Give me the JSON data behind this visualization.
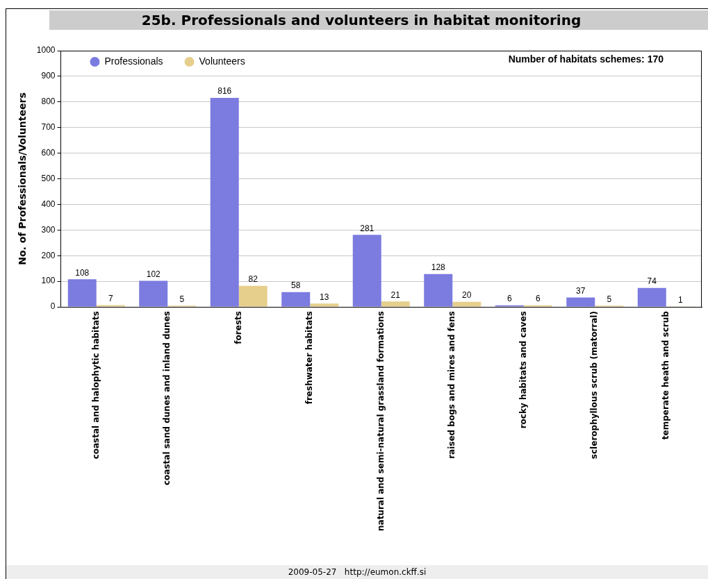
{
  "chart_data": {
    "type": "bar",
    "title": "25b. Professionals and volunteers in habitat monitoring",
    "ylabel": "No. of Professionals/Volunteers",
    "categories": [
      "coastal and halophytic habitats",
      "coastal sand dunes and inland dunes",
      "forests",
      "freshwater habitats",
      "natural and semi-natural grassland formations",
      "raised bogs and mires and fens",
      "rocky habitats and caves",
      "sclerophyllous scrub (matorral)",
      "temperate heath and scrub"
    ],
    "series": [
      {
        "name": "Professionals",
        "color": "#7b7be0",
        "values": [
          108,
          102,
          816,
          58,
          281,
          128,
          6,
          37,
          74
        ]
      },
      {
        "name": "Volunteers",
        "color": "#e6cf8c",
        "values": [
          7,
          5,
          82,
          13,
          21,
          20,
          6,
          5,
          1
        ]
      }
    ],
    "ylim": [
      0,
      1000
    ],
    "yticks": [
      0,
      100,
      200,
      300,
      400,
      500,
      600,
      700,
      800,
      900,
      1000
    ],
    "grid": "y",
    "legend": "top left",
    "data_labels": true,
    "annotations": [
      "Number of habitats schemes: 170",
      "2009-05-27   http://eumon.ckff.si"
    ]
  }
}
